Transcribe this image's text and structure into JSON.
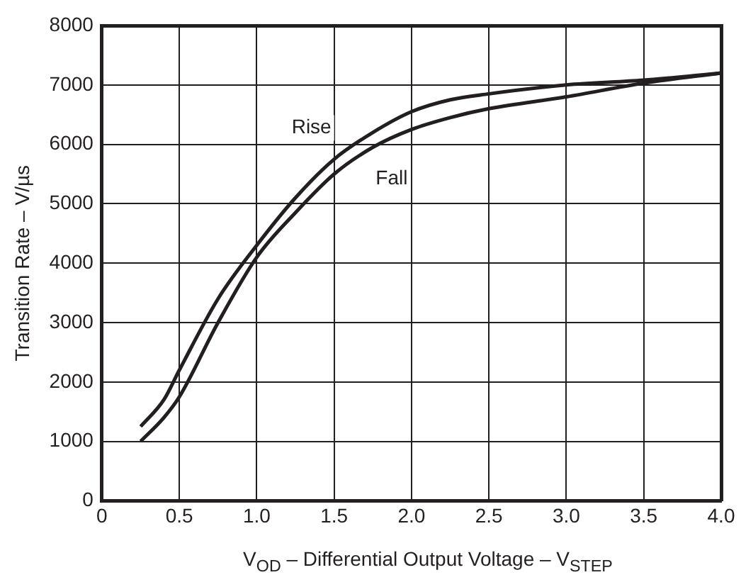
{
  "chart_data": {
    "type": "line",
    "xlabel": "V$_{OD}$ – Differential Output Voltage – V$_{STEP}$",
    "ylabel": "Transition Rate – V/µs",
    "xlim": [
      0,
      4
    ],
    "xticks": [
      {
        "value": 0,
        "label": "0"
      },
      0.5,
      {
        "value": 1,
        "label": "1.0"
      },
      1.5,
      {
        "value": 2,
        "label": "2.0"
      },
      2.5,
      {
        "value": 3,
        "label": "3.0"
      },
      3.5,
      {
        "value": 4,
        "label": "4.0"
      }
    ],
    "ylim": [
      0,
      8000
    ],
    "yticks": [
      0,
      1000,
      2000,
      3000,
      4000,
      5000,
      6000,
      7000,
      8000
    ],
    "grid": true,
    "legend": false,
    "marker": "none",
    "line_style": "solid",
    "series": [
      {
        "name": "Rise",
        "color": "#231f20",
        "x": [
          0.25,
          0.4,
          0.5,
          0.75,
          1.0,
          1.25,
          1.5,
          1.75,
          2.0,
          2.25,
          2.5,
          3.0,
          3.5,
          4.0
        ],
        "values": [
          1250,
          1700,
          2200,
          3400,
          4300,
          5100,
          5750,
          6200,
          6550,
          6750,
          6850,
          7000,
          7080,
          7200
        ]
      },
      {
        "name": "Fall",
        "color": "#231f20",
        "x": [
          0.25,
          0.4,
          0.5,
          0.75,
          1.0,
          1.25,
          1.5,
          1.75,
          2.0,
          2.25,
          2.5,
          3.0,
          3.5,
          4.0
        ],
        "values": [
          1000,
          1400,
          1750,
          3000,
          4100,
          4850,
          5500,
          5950,
          6250,
          6450,
          6600,
          6800,
          7030,
          7200
        ]
      }
    ]
  }
}
